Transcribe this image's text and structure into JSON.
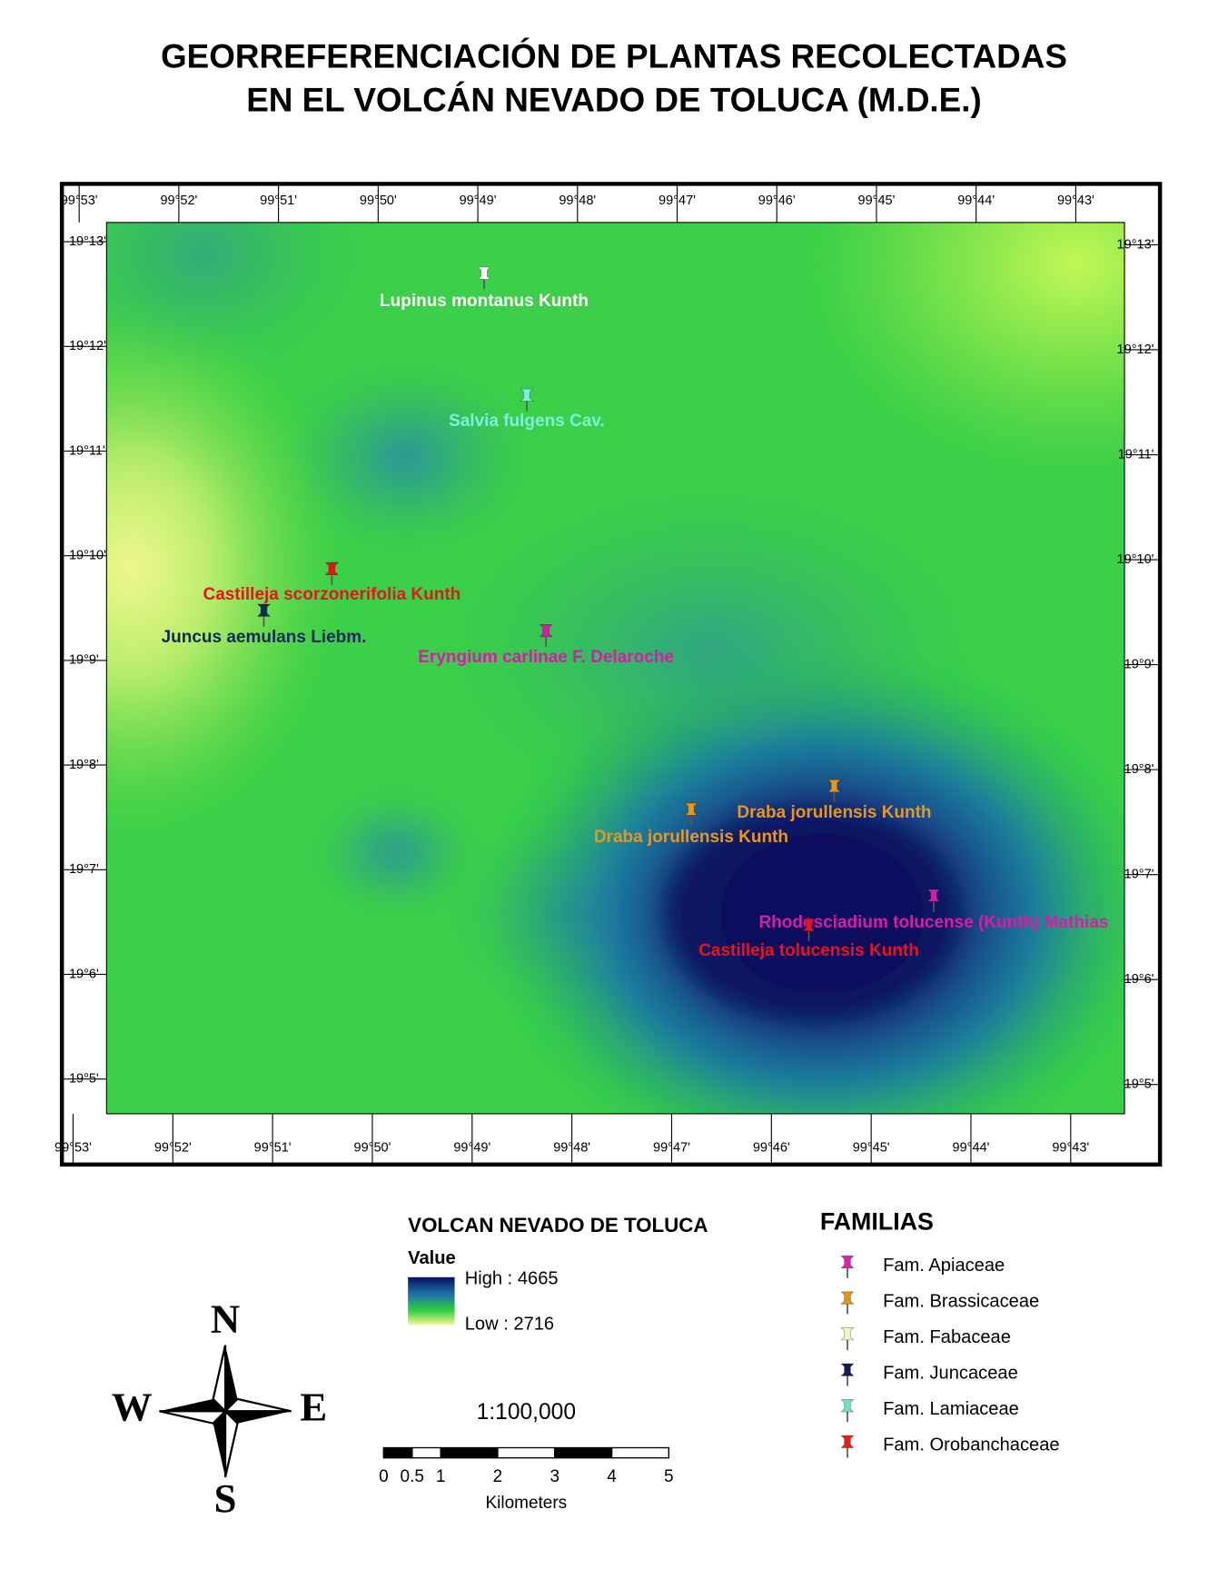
{
  "title": [
    "GEORREFERENCIACIÓN DE PLANTAS RECOLECTADAS",
    "EN EL VOLCÁN NEVADO DE TOLUCA (M.D.E.)"
  ],
  "map": {
    "top_longitudes": [
      "99°53'",
      "99°52'",
      "99°51'",
      "99°50'",
      "99°49'",
      "99°48'",
      "99°47'",
      "99°46'",
      "99°45'",
      "99°44'",
      "99°43'"
    ],
    "bottom_longitudes": [
      "99°53'",
      "99°52'",
      "99°51'",
      "99°50'",
      "99°49'",
      "99°48'",
      "99°47'",
      "99°46'",
      "99°45'",
      "99°44'",
      "99°43'"
    ],
    "left_latitudes": [
      "19°13'",
      "19°12'",
      "19°11'",
      "19°10'",
      "19°9'",
      "19°8'",
      "19°7'",
      "19°6'",
      "19°5'"
    ],
    "right_latitudes": [
      "19°13'",
      "19°12'",
      "19°11'",
      "19°10'",
      "19°9'",
      "19°8'",
      "19°7'",
      "19°6'",
      "19°5'"
    ],
    "plants": [
      {
        "name": "Lupinus montanus Kunth",
        "color": "#ffffff"
      },
      {
        "name": "Salvia fulgens Cav.",
        "color": "#7ff0dc"
      },
      {
        "name": "Castilleja scorzonerifolia Kunth",
        "color": "#e8141c"
      },
      {
        "name": "Juncus aemulans Liebm.",
        "color": "#0d2a5a"
      },
      {
        "name": "Eryngium carlinae F. Delaroche",
        "color": "#d81ca8"
      },
      {
        "name": "Draba jorullensis Kunth",
        "color": "#e8961e"
      },
      {
        "name": "Draba jorullensis Kunth",
        "color": "#e8961e"
      },
      {
        "name": "Rhodosciadium tolucense (Kunth) Mathias",
        "color": "#d81ca8"
      },
      {
        "name": "Castilleja tolucensis Kunth",
        "color": "#e8141c"
      }
    ]
  },
  "legend": {
    "raster_title": "VOLCAN NEVADO DE TOLUCA",
    "value_heading": "Value",
    "high": "High : 4665",
    "low": "Low : 2716",
    "families_title": "FAMILIAS",
    "families": [
      {
        "name": "Fam. Apiaceae",
        "color": "#e020b0"
      },
      {
        "name": "Fam. Brassicaceae",
        "color": "#e0961e"
      },
      {
        "name": "Fam. Fabaceae",
        "color": "#eef8c4"
      },
      {
        "name": "Fam. Juncaceae",
        "color": "#102050"
      },
      {
        "name": "Fam. Lamiaceae",
        "color": "#70e0c8"
      },
      {
        "name": "Fam. Orobanchaceae",
        "color": "#e02020"
      }
    ]
  },
  "scale": {
    "ratio": "1:100,000",
    "ticks": [
      0,
      0.5,
      1,
      2,
      3,
      4,
      5
    ],
    "unit": "Kilometers"
  },
  "compass": {
    "n": "N",
    "s": "S",
    "e": "E",
    "w": "W"
  }
}
